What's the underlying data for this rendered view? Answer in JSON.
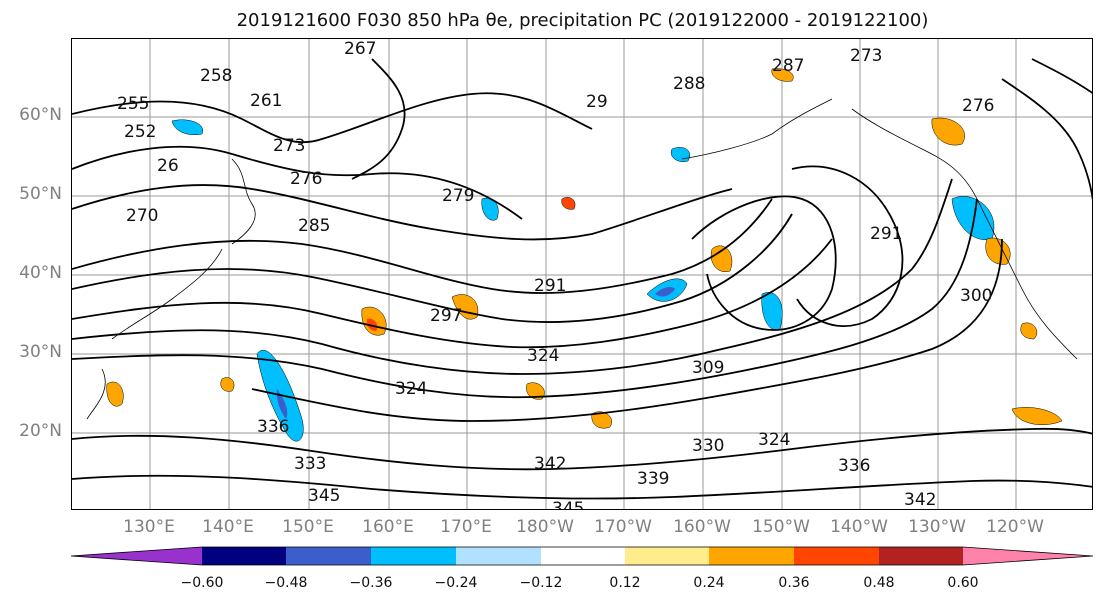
{
  "title": "2019121600 F030 850 hPa θe, precipitation PC (2019122000 - 2019122100)",
  "lat_labels": [
    "60°N",
    "50°N",
    "40°N",
    "30°N",
    "20°N"
  ],
  "lon_labels": [
    "130°E",
    "140°E",
    "150°E",
    "160°E",
    "170°E",
    "180°W",
    "170°W",
    "160°W",
    "150°W",
    "140°W",
    "130°W",
    "120°W"
  ],
  "contour_labels": [
    "267",
    "273",
    "258",
    "288",
    "287",
    "255",
    "261",
    "29",
    "276",
    "252",
    "273",
    "26",
    "276",
    "279",
    "270",
    "285",
    "291",
    "291",
    "297",
    "300",
    "324",
    "309",
    "324",
    "324",
    "336",
    "342",
    "330",
    "336",
    "339",
    "342",
    "345",
    "333",
    "345"
  ],
  "colorbar": {
    "colors": [
      "#9932cc",
      "#000080",
      "#3a5fcd",
      "#00bfff",
      "#b0e2ff",
      "#ffffff",
      "#ffec8b",
      "#ffa500",
      "#ff4500",
      "#b22222",
      "#ff82ab"
    ],
    "tick_labels": [
      "−0.60",
      "−0.48",
      "−0.36",
      "−0.24",
      "−0.12",
      "0.12",
      "0.24",
      "0.36",
      "0.48",
      "0.60"
    ]
  }
}
